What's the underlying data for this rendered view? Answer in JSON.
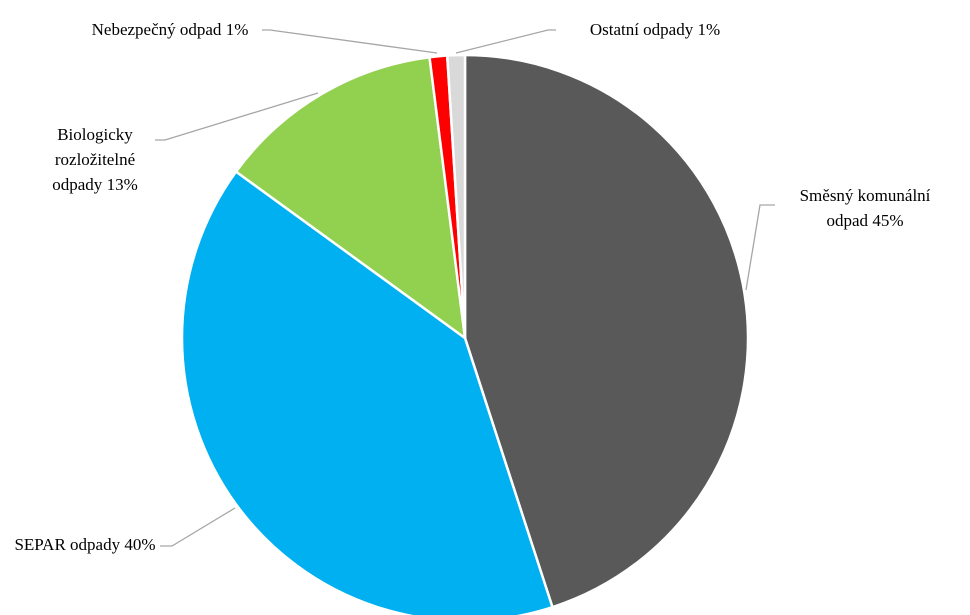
{
  "chart_data": {
    "type": "pie",
    "categories": [
      "Směsný komunální odpad",
      "SEPAR odpady",
      "Biologicky rozložitelné odpady",
      "Nebezpečný odpad",
      "Ostatní odpady"
    ],
    "values": [
      45,
      40,
      13,
      1,
      1
    ],
    "value_labels": [
      "45%",
      "40%",
      "13%",
      "1%",
      "1%"
    ],
    "colors": [
      "#595959",
      "#00b0f0",
      "#92d050",
      "#ff0000",
      "#d9d9d9"
    ]
  }
}
